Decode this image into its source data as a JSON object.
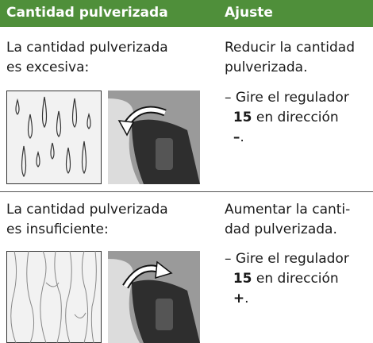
{
  "table": {
    "columns": [
      "Cantidad pulverizada",
      "Ajuste"
    ],
    "rows": [
      {
        "problem": [
          "La cantidad pulverizada",
          "es excesiva:"
        ],
        "action": [
          "Reducir la cantidad",
          "pulverizada."
        ],
        "step": {
          "intro": "– Gire el regulador",
          "number": "15",
          "direction": "en dirección",
          "sign": "–",
          "end": "."
        }
      },
      {
        "problem": [
          "La cantidad pulverizada",
          "es insuficiente:"
        ],
        "action": [
          "Aumentar la canti-",
          "dad pulverizada."
        ],
        "step": {
          "intro": "– Gire el regulador",
          "number": "15",
          "direction": "en dirección",
          "sign": "+",
          "end": "."
        }
      }
    ]
  }
}
